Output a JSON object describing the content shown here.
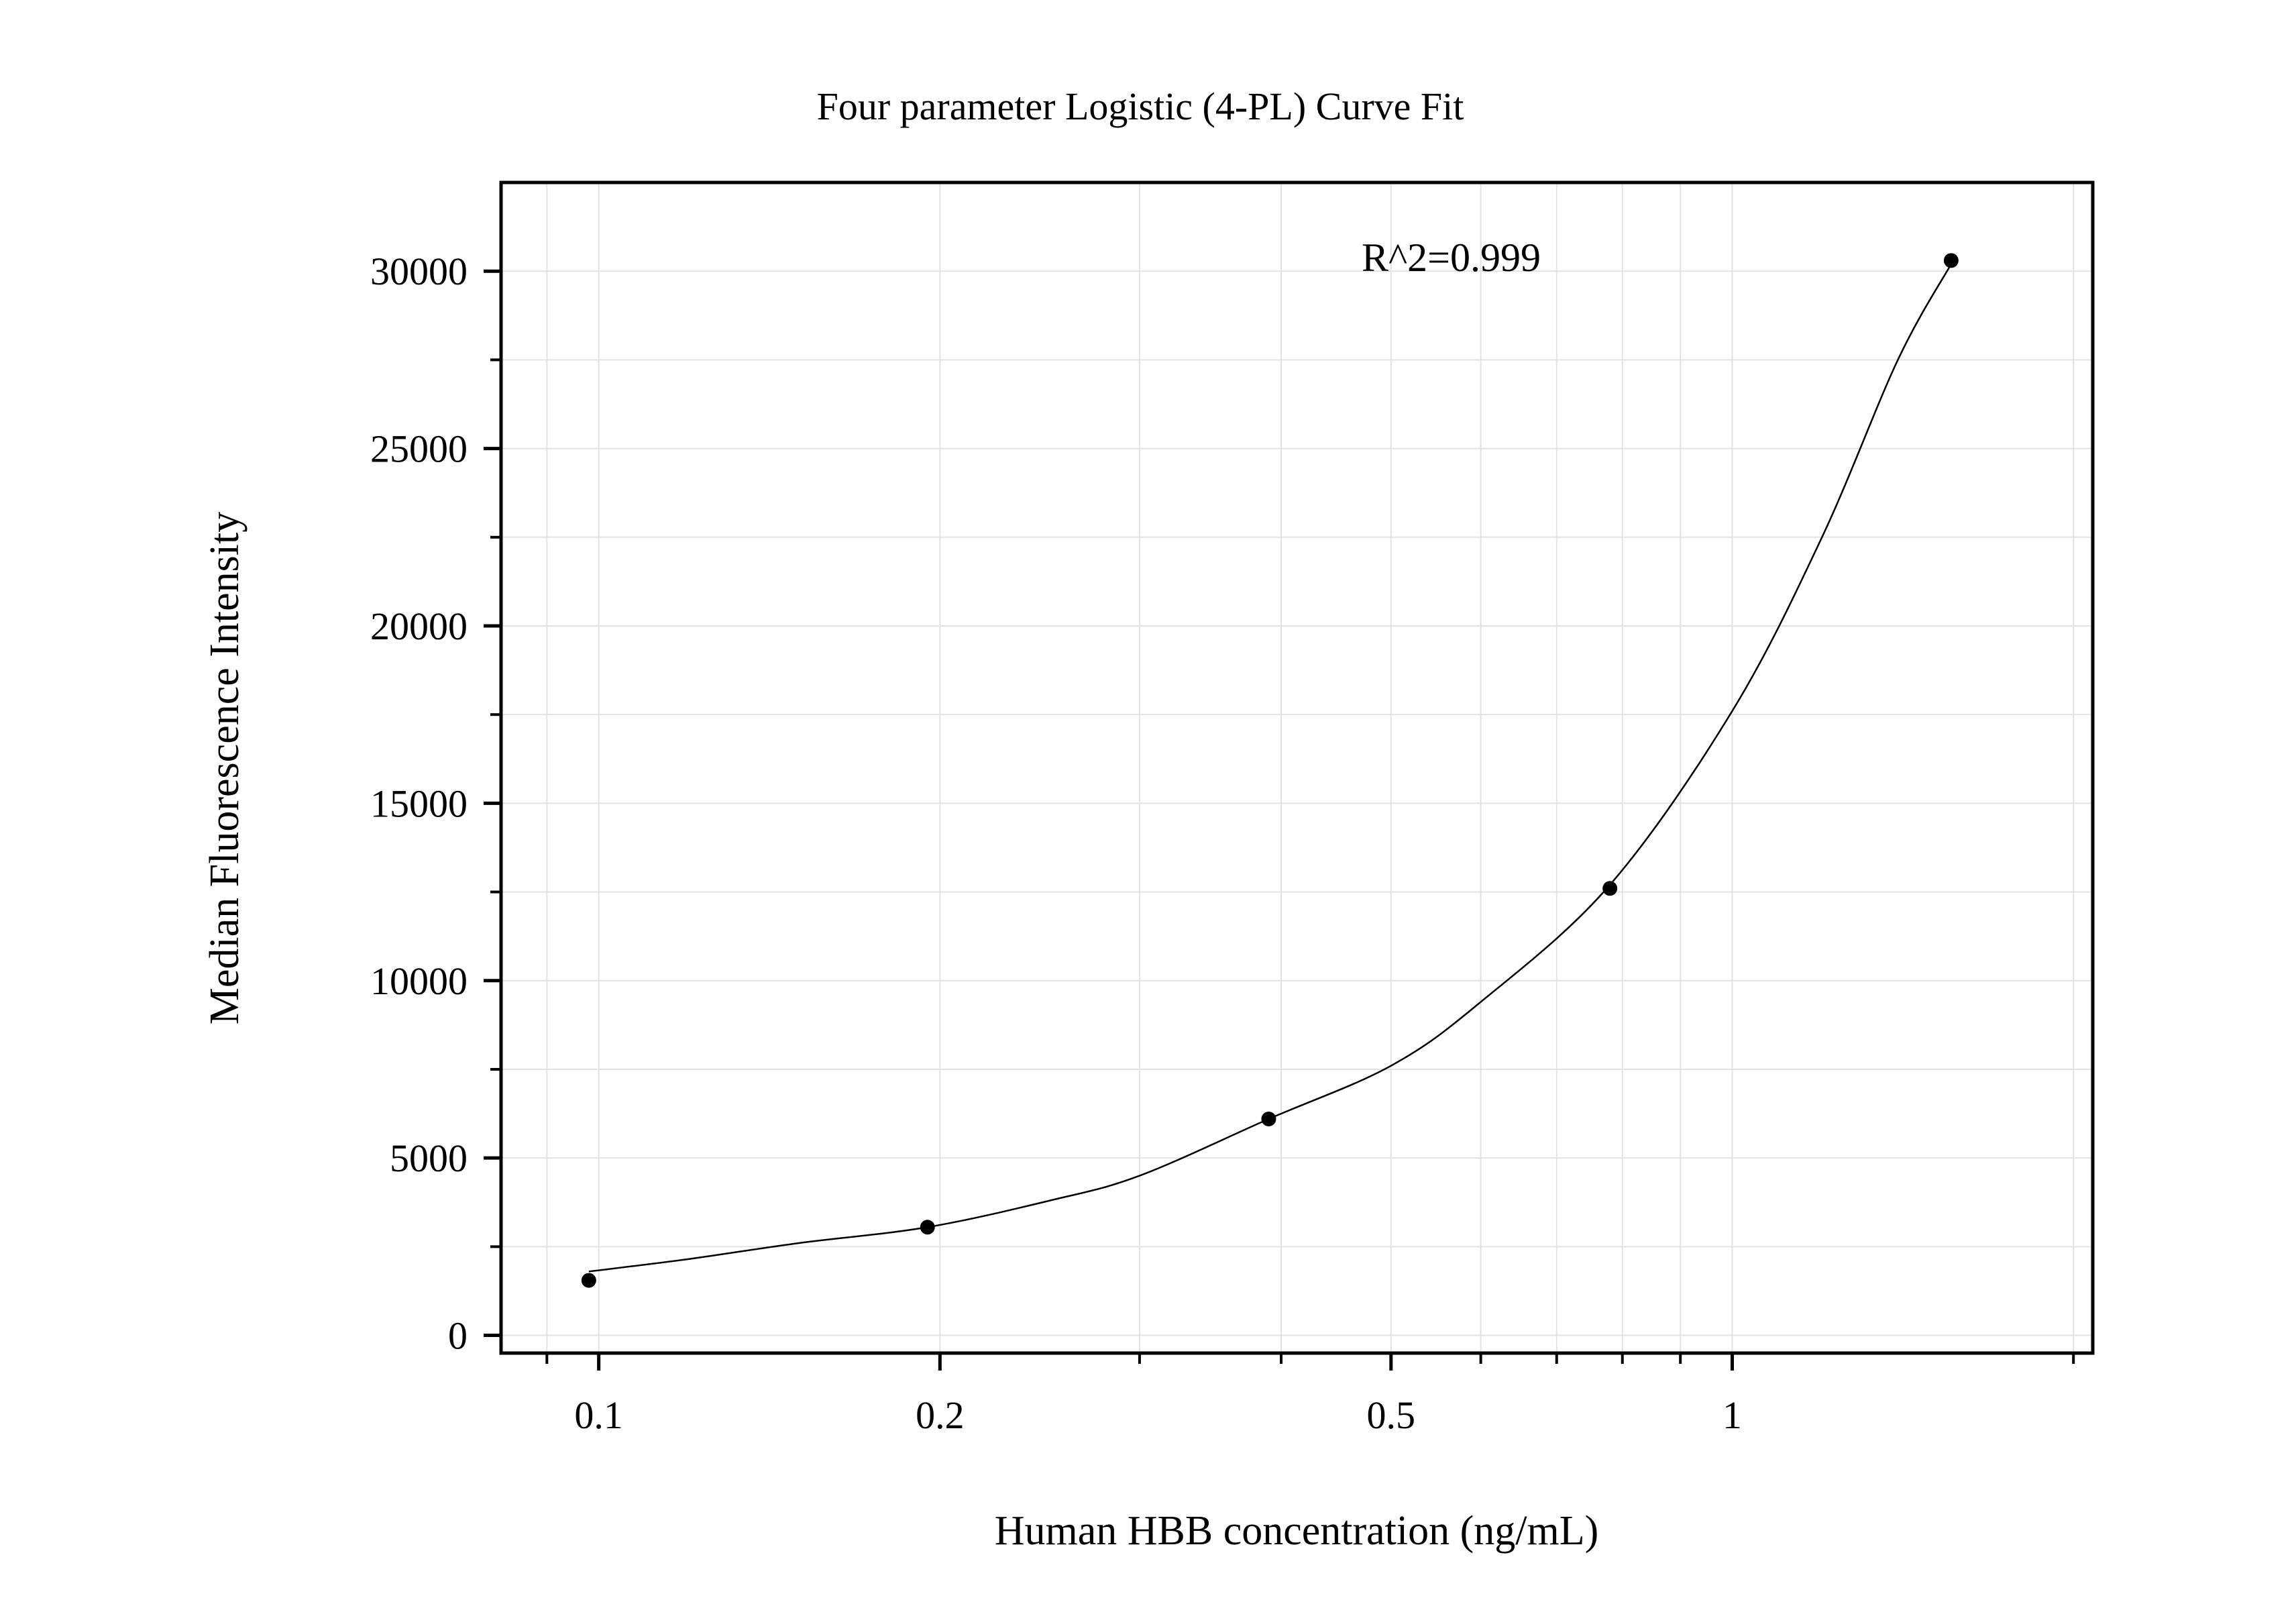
{
  "chart_data": {
    "type": "scatter",
    "title": "Four parameter Logistic (4-PL) Curve Fit",
    "xlabel": "Human HBB concentration (ng/mL)",
    "ylabel": "Median Fluorescence Intensity",
    "x_scale": "log",
    "xlim": [
      0.082,
      2.08
    ],
    "ylim": [
      -500,
      32500
    ],
    "x_ticks": [
      {
        "value": 0.1,
        "label": "0.1"
      },
      {
        "value": 0.2,
        "label": "0.2"
      },
      {
        "value": 0.5,
        "label": "0.5"
      },
      {
        "value": 1,
        "label": "1"
      }
    ],
    "x_minor_ticks": [
      0.09,
      0.3,
      0.4,
      0.6,
      0.7,
      0.8,
      0.9,
      2
    ],
    "y_ticks": [
      {
        "value": 0,
        "label": "0"
      },
      {
        "value": 5000,
        "label": "5000"
      },
      {
        "value": 10000,
        "label": "10000"
      },
      {
        "value": 15000,
        "label": "15000"
      },
      {
        "value": 20000,
        "label": "20000"
      },
      {
        "value": 25000,
        "label": "25000"
      },
      {
        "value": 30000,
        "label": "30000"
      }
    ],
    "y_minor_ticks": [
      2500,
      7500,
      12500,
      17500,
      22500,
      27500
    ],
    "grid": true,
    "series": [
      {
        "points": [
          {
            "x": 0.098,
            "y": 1550
          },
          {
            "x": 0.195,
            "y": 3050
          },
          {
            "x": 0.39,
            "y": 6100
          },
          {
            "x": 0.78,
            "y": 12600
          },
          {
            "x": 1.56,
            "y": 30300
          }
        ]
      }
    ],
    "fit_curve": {
      "x": [
        0.098,
        0.12,
        0.15,
        0.195,
        0.25,
        0.3,
        0.39,
        0.5,
        0.6,
        0.78,
        1.0,
        1.2,
        1.4,
        1.56
      ],
      "y": [
        1800,
        2150,
        2600,
        3050,
        3800,
        4500,
        6100,
        7600,
        9400,
        12700,
        17600,
        22500,
        27500,
        30200
      ]
    },
    "annotations": [
      {
        "text": "R^2=0.999"
      }
    ]
  }
}
